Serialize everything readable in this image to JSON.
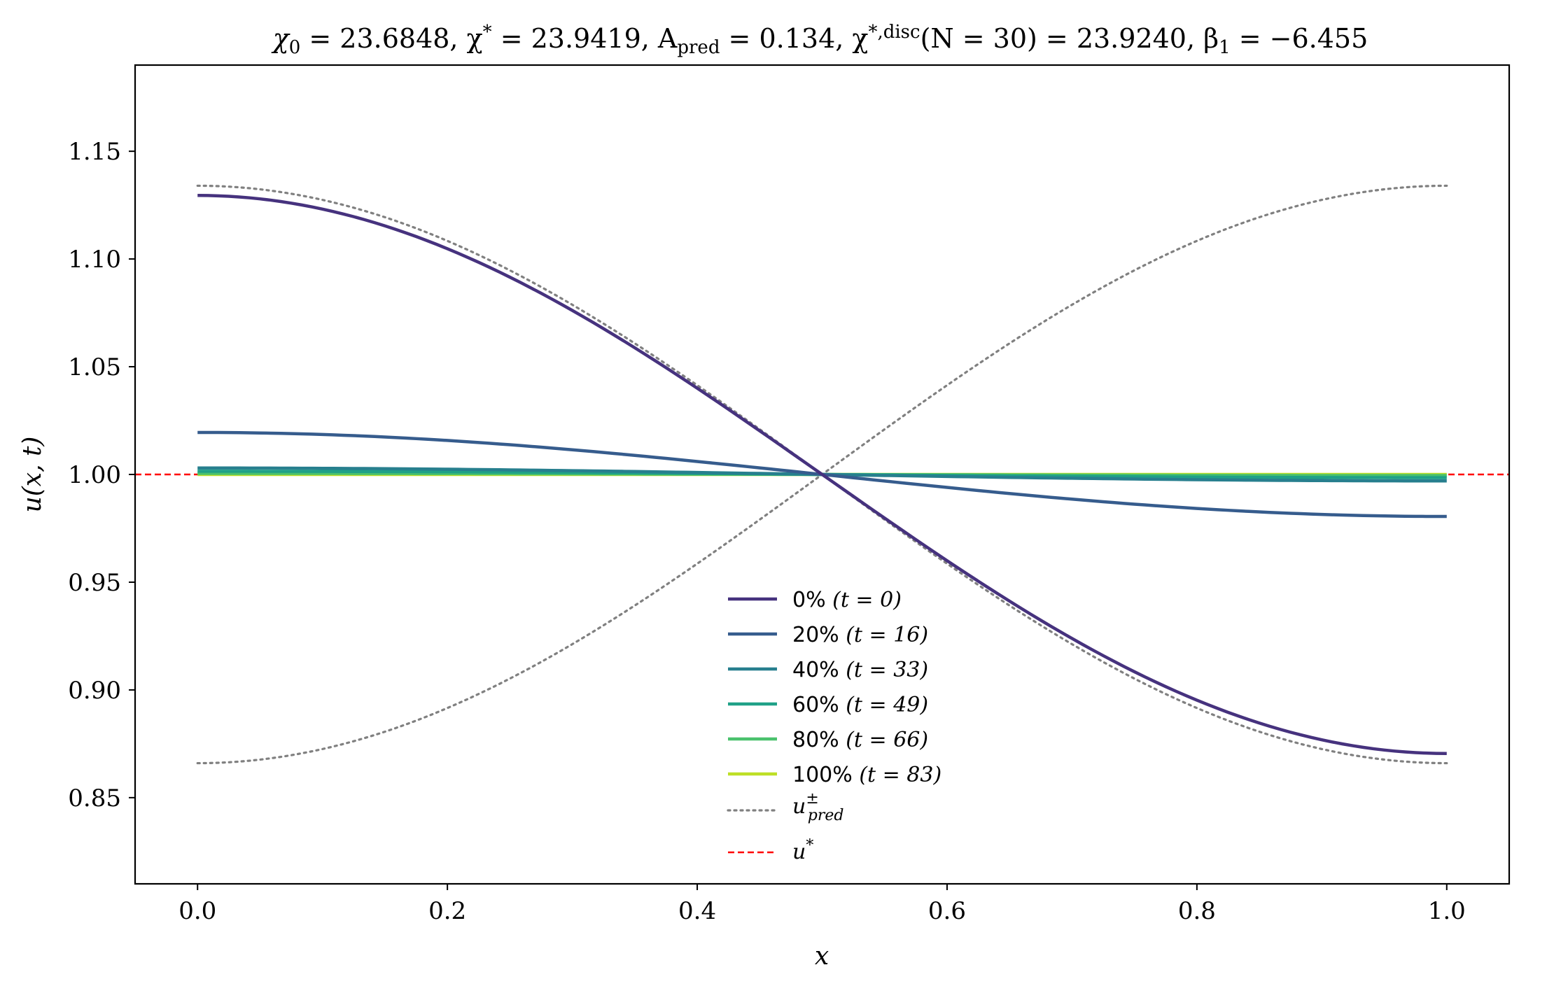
{
  "chart_data": {
    "type": "line",
    "title": "χ₀ = 23.6848,  χ* = 23.9419,  A_pred = 0.134,  χ*,disc(N = 30) = 23.9240,  β₁ = −6.455",
    "title_parts": {
      "p1": "χ",
      "p1sub": "0",
      "p2": " = 23.6848,  χ",
      "p2sup": "*",
      "p3": " = 23.9419,  A",
      "p3sub": "pred",
      "p4": " = 0.134,  χ",
      "p4sup": "*,disc",
      "p5": "(N = 30) = 23.9240,  β",
      "p5sub": "1",
      "p6": " = −6.455"
    },
    "xlabel": "x",
    "ylabel": "u(x, t)",
    "xlim": [
      -0.05,
      1.05
    ],
    "ylim": [
      0.81,
      1.19
    ],
    "xticks": [
      0.0,
      0.2,
      0.4,
      0.6,
      0.8,
      1.0
    ],
    "xtick_labels": [
      "0.0",
      "0.2",
      "0.4",
      "0.6",
      "0.8",
      "1.0"
    ],
    "yticks": [
      0.85,
      0.9,
      0.95,
      1.0,
      1.05,
      1.1,
      1.15
    ],
    "ytick_labels": [
      "0.85",
      "0.90",
      "0.95",
      "1.00",
      "1.05",
      "1.10",
      "1.15"
    ],
    "grid": false,
    "legend_position": "lower-center",
    "series": [
      {
        "name": "0% (t = 0)",
        "label": "0%",
        "t": "(t = 0)",
        "color": "#46327e",
        "amplitude": 0.1295,
        "style": "solid"
      },
      {
        "name": "20% (t = 16)",
        "label": "20%",
        "t": "(t = 16)",
        "color": "#365c8d",
        "amplitude": 0.0195,
        "style": "solid"
      },
      {
        "name": "40% (t = 33)",
        "label": "40%",
        "t": "(t = 33)",
        "color": "#277f8e",
        "amplitude": 0.003,
        "style": "solid"
      },
      {
        "name": "60% (t = 49)",
        "label": "60%",
        "t": "(t = 49)",
        "color": "#1fa187",
        "amplitude": 0.0015,
        "style": "solid"
      },
      {
        "name": "80% (t = 66)",
        "label": "80%",
        "t": "(t = 66)",
        "color": "#4ac16d",
        "amplitude": 0.0005,
        "style": "solid"
      },
      {
        "name": "100% (t = 83)",
        "label": "100%",
        "t": "(t = 83)",
        "color": "#bddf26",
        "amplitude": 0.0,
        "style": "solid"
      }
    ],
    "pred_curves": {
      "name": "u±pred",
      "legend_base": "u",
      "legend_sup": "±",
      "legend_sub": "pred",
      "color": "#808080",
      "amplitude": 0.134,
      "style": "dotted"
    },
    "reference_line": {
      "name": "u*",
      "legend_base": "u",
      "legend_sup": "*",
      "y": 1.0,
      "color": "#ff0000",
      "style": "dashed"
    }
  }
}
